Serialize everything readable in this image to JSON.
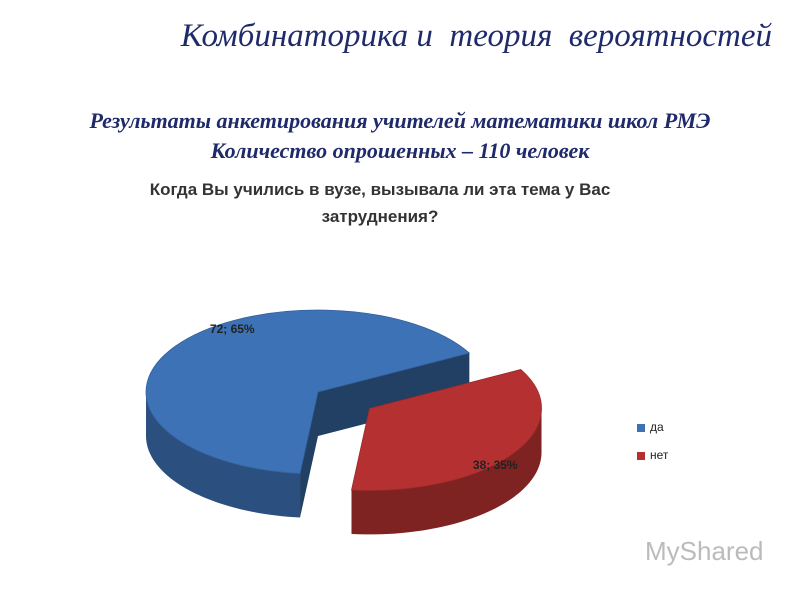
{
  "slide": {
    "heading": "Комбинаторика и  теория  вероятностей",
    "subtitle_lines": [
      "Результаты анкетирования учителей математики школ РМЭ",
      "Количество опрошенных – 110 человек"
    ],
    "watermark": "MyShared"
  },
  "chart_data": {
    "type": "pie",
    "title": "Когда Вы учились в вузе, вызывала ли эта тема у Вас затруднения?",
    "categories": [
      "да",
      "нет"
    ],
    "values": [
      72,
      38
    ],
    "value_labels": [
      "72; 65%",
      "38; 35%"
    ],
    "colors": [
      "#3d72b6",
      "#b53131"
    ],
    "legend": "right"
  }
}
